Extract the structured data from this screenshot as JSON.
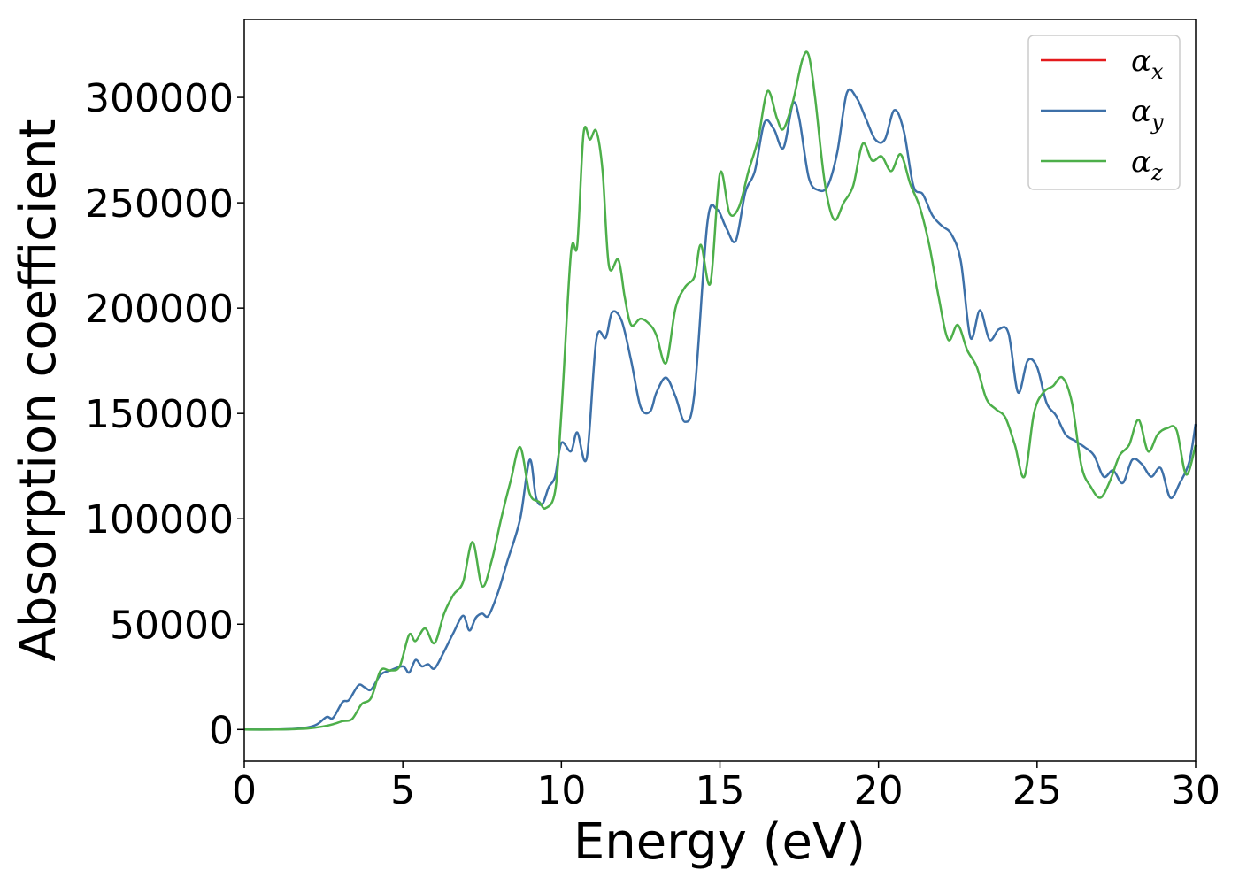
{
  "chart_data": {
    "type": "line",
    "title": "",
    "xlabel": "Energy (eV)",
    "ylabel": "Absorption coefficient",
    "xlim": [
      0,
      30
    ],
    "ylim": [
      -15000,
      337000
    ],
    "x_ticks": [
      0,
      5,
      10,
      15,
      20,
      25,
      30
    ],
    "x_tick_labels": [
      "0",
      "5",
      "10",
      "15",
      "20",
      "25",
      "30"
    ],
    "y_ticks": [
      0,
      50000,
      100000,
      150000,
      200000,
      250000,
      300000
    ],
    "y_tick_labels": [
      "0",
      "50000",
      "100000",
      "150000",
      "200000",
      "250000",
      "300000"
    ],
    "grid": false,
    "legend_position": "top-right",
    "series": [
      {
        "name": "α_x",
        "name_base": "α",
        "name_sub": "x",
        "color": "#e41a1c",
        "draw": false,
        "x": [
          0,
          1,
          1.5,
          2,
          2.3,
          2.6,
          2.8,
          3.1,
          3.3,
          3.6,
          3.8,
          4.0,
          4.3,
          4.6,
          5.0,
          5.2,
          5.4,
          5.6,
          5.8,
          6.0,
          6.3,
          6.6,
          6.9,
          7.1,
          7.3,
          7.5,
          7.7,
          8.0,
          8.3,
          8.7,
          9.0,
          9.2,
          9.4,
          9.6,
          9.8,
          10.0,
          10.3,
          10.5,
          10.8,
          11.1,
          11.4,
          11.6,
          11.9,
          12.2,
          12.5,
          12.8,
          13.0,
          13.3,
          13.6,
          13.9,
          14.2,
          14.6,
          14.9,
          15.2,
          15.5,
          15.8,
          16.1,
          16.4,
          16.7,
          17.0,
          17.3,
          17.5,
          17.8,
          18.1,
          18.4,
          18.7,
          19.0,
          19.3,
          19.6,
          19.9,
          20.2,
          20.5,
          20.8,
          21.1,
          21.4,
          21.7,
          22.0,
          22.3,
          22.6,
          22.9,
          23.2,
          23.5,
          23.8,
          24.1,
          24.4,
          24.7,
          25.0,
          25.3,
          25.6,
          25.9,
          26.2,
          26.5,
          26.8,
          27.1,
          27.4,
          27.7,
          28.0,
          28.3,
          28.6,
          28.9,
          29.2,
          29.5,
          29.8,
          30.0
        ],
        "y": [
          0,
          0,
          200,
          1000,
          2500,
          6000,
          5500,
          13000,
          14000,
          21000,
          20000,
          19000,
          26000,
          28000,
          30000,
          27000,
          33000,
          30000,
          31000,
          29000,
          37000,
          46000,
          54000,
          47000,
          53000,
          55000,
          54000,
          65000,
          80000,
          100000,
          128000,
          110000,
          107000,
          115000,
          120000,
          136000,
          132000,
          141000,
          129000,
          185000,
          186000,
          198000,
          194000,
          175000,
          153000,
          151000,
          160000,
          167000,
          158000,
          146000,
          160000,
          240000,
          247000,
          238000,
          232000,
          255000,
          265000,
          288000,
          285000,
          276000,
          297000,
          290000,
          262000,
          256000,
          258000,
          274000,
          302000,
          300000,
          290000,
          280000,
          280000,
          294000,
          284000,
          258000,
          254000,
          244000,
          239000,
          235000,
          222000,
          186000,
          199000,
          185000,
          190000,
          188000,
          160000,
          175000,
          172000,
          155000,
          149000,
          140000,
          137000,
          134000,
          130000,
          120000,
          123000,
          117000,
          128000,
          126000,
          120000,
          124000,
          110000,
          117000,
          127000,
          145000
        ]
      },
      {
        "name": "α_y",
        "name_base": "α",
        "name_sub": "y",
        "color": "#3d70a8",
        "draw": true,
        "x": [
          0,
          1,
          1.5,
          2,
          2.3,
          2.6,
          2.8,
          3.1,
          3.3,
          3.6,
          3.8,
          4.0,
          4.3,
          4.6,
          5.0,
          5.2,
          5.4,
          5.6,
          5.8,
          6.0,
          6.3,
          6.6,
          6.9,
          7.1,
          7.3,
          7.5,
          7.7,
          8.0,
          8.3,
          8.7,
          9.0,
          9.2,
          9.4,
          9.6,
          9.8,
          10.0,
          10.3,
          10.5,
          10.8,
          11.1,
          11.4,
          11.6,
          11.9,
          12.2,
          12.5,
          12.8,
          13.0,
          13.3,
          13.6,
          13.9,
          14.2,
          14.6,
          14.9,
          15.2,
          15.5,
          15.8,
          16.1,
          16.4,
          16.7,
          17.0,
          17.3,
          17.5,
          17.8,
          18.1,
          18.4,
          18.7,
          19.0,
          19.3,
          19.6,
          19.9,
          20.2,
          20.5,
          20.8,
          21.1,
          21.4,
          21.7,
          22.0,
          22.3,
          22.6,
          22.9,
          23.2,
          23.5,
          23.8,
          24.1,
          24.4,
          24.7,
          25.0,
          25.3,
          25.6,
          25.9,
          26.2,
          26.5,
          26.8,
          27.1,
          27.4,
          27.7,
          28.0,
          28.3,
          28.6,
          28.9,
          29.2,
          29.5,
          29.8,
          30.0
        ],
        "y": [
          0,
          0,
          200,
          1000,
          2500,
          6000,
          5500,
          13000,
          14000,
          21000,
          20000,
          19000,
          26000,
          28000,
          30000,
          27000,
          33000,
          30000,
          31000,
          29000,
          37000,
          46000,
          54000,
          47000,
          53000,
          55000,
          54000,
          65000,
          80000,
          100000,
          128000,
          110000,
          107000,
          115000,
          120000,
          136000,
          132000,
          141000,
          129000,
          185000,
          186000,
          198000,
          194000,
          175000,
          153000,
          151000,
          160000,
          167000,
          158000,
          146000,
          160000,
          240000,
          247000,
          238000,
          232000,
          255000,
          265000,
          288000,
          285000,
          276000,
          297000,
          290000,
          262000,
          256000,
          258000,
          274000,
          302000,
          300000,
          290000,
          280000,
          280000,
          294000,
          284000,
          258000,
          254000,
          244000,
          239000,
          235000,
          222000,
          186000,
          199000,
          185000,
          190000,
          188000,
          160000,
          175000,
          172000,
          155000,
          149000,
          140000,
          137000,
          134000,
          130000,
          120000,
          123000,
          117000,
          128000,
          126000,
          120000,
          124000,
          110000,
          117000,
          127000,
          145000
        ]
      },
      {
        "name": "α_z",
        "name_base": "α",
        "name_sub": "z",
        "color": "#4daf4a",
        "draw": true,
        "x": [
          0,
          1,
          2,
          2.5,
          2.8,
          3.1,
          3.4,
          3.7,
          4.0,
          4.3,
          4.6,
          4.9,
          5.2,
          5.4,
          5.7,
          6.0,
          6.3,
          6.6,
          6.9,
          7.2,
          7.5,
          7.8,
          8.1,
          8.4,
          8.7,
          9.0,
          9.3,
          9.5,
          9.8,
          10.0,
          10.3,
          10.5,
          10.7,
          10.9,
          11.1,
          11.3,
          11.5,
          11.8,
          12.0,
          12.2,
          12.5,
          12.8,
          13.0,
          13.3,
          13.6,
          13.9,
          14.2,
          14.4,
          14.7,
          15.0,
          15.3,
          15.6,
          15.9,
          16.2,
          16.5,
          16.8,
          17.0,
          17.3,
          17.6,
          17.8,
          18.0,
          18.3,
          18.6,
          18.9,
          19.2,
          19.5,
          19.8,
          20.1,
          20.4,
          20.7,
          21.0,
          21.3,
          21.6,
          21.9,
          22.2,
          22.5,
          22.8,
          23.1,
          23.4,
          23.7,
          24.0,
          24.3,
          24.6,
          24.9,
          25.2,
          25.5,
          25.8,
          26.1,
          26.4,
          26.7,
          27.0,
          27.3,
          27.6,
          27.9,
          28.2,
          28.5,
          28.8,
          29.1,
          29.4,
          29.7,
          30.0
        ],
        "y": [
          0,
          0,
          500,
          1500,
          2500,
          4000,
          5000,
          12000,
          15000,
          28000,
          28000,
          30000,
          45000,
          42000,
          48000,
          41000,
          55000,
          64000,
          70000,
          89000,
          68000,
          80000,
          100000,
          118000,
          134000,
          112000,
          108000,
          105000,
          113000,
          150000,
          226000,
          230000,
          283000,
          280000,
          284000,
          265000,
          220000,
          223000,
          205000,
          192000,
          195000,
          192000,
          187000,
          174000,
          200000,
          210000,
          215000,
          230000,
          212000,
          264000,
          245000,
          248000,
          265000,
          280000,
          303000,
          290000,
          285000,
          298000,
          318000,
          320000,
          300000,
          260000,
          242000,
          250000,
          258000,
          278000,
          270000,
          272000,
          265000,
          273000,
          259000,
          248000,
          230000,
          205000,
          185000,
          192000,
          180000,
          172000,
          157000,
          152000,
          148000,
          135000,
          120000,
          150000,
          160000,
          163000,
          167000,
          155000,
          125000,
          115000,
          110000,
          118000,
          130000,
          135000,
          147000,
          132000,
          140000,
          143000,
          142000,
          121000,
          135000
        ]
      }
    ]
  }
}
